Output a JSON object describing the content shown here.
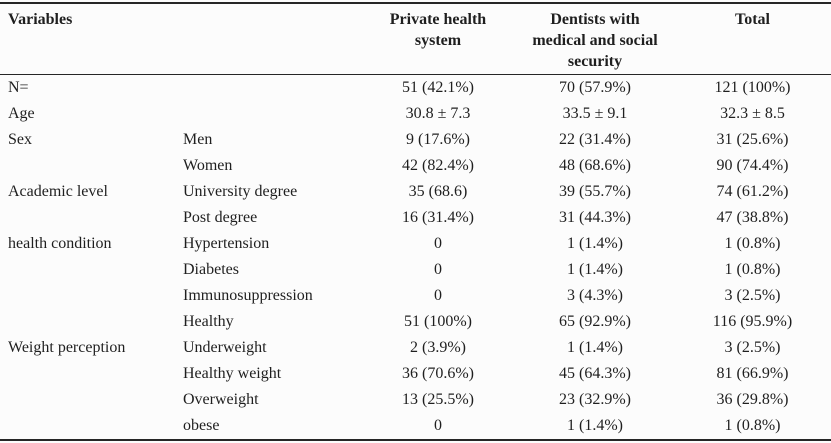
{
  "table": {
    "headers": {
      "variables": "Variables",
      "private_health_system": "Private health\nsystem",
      "dentists_security": "Dentists with\nmedical and social\nsecurity",
      "total": "Total"
    },
    "rows": [
      {
        "cells": [
          "N=",
          "",
          "51 (42.1%)",
          "70 (57.9%)",
          "121 (100%)"
        ]
      },
      {
        "cells": [
          "Age",
          "",
          "30.8 ± 7.3",
          "33.5 ± 9.1",
          "32.3 ± 8.5"
        ]
      },
      {
        "cells": [
          "Sex",
          "Men",
          "9 (17.6%)",
          "22 (31.4%)",
          "31 (25.6%)"
        ]
      },
      {
        "cells": [
          "",
          "Women",
          "42 (82.4%)",
          "48 (68.6%)",
          "90 (74.4%)"
        ]
      },
      {
        "cells": [
          "Academic level",
          "University degree",
          "35 (68.6)",
          "39 (55.7%)",
          "74 (61.2%)"
        ]
      },
      {
        "cells": [
          "",
          "Post degree",
          "16 (31.4%)",
          "31 (44.3%)",
          "47 (38.8%)"
        ]
      },
      {
        "cells": [
          "health condition",
          "Hypertension",
          "0",
          "1 (1.4%)",
          "1 (0.8%)"
        ]
      },
      {
        "cells": [
          "",
          "Diabetes",
          "0",
          "1 (1.4%)",
          "1 (0.8%)"
        ]
      },
      {
        "cells": [
          "",
          "Immunosuppression",
          "0",
          "3 (4.3%)",
          "3 (2.5%)"
        ]
      },
      {
        "cells": [
          "",
          "Healthy",
          "51 (100%)",
          "65 (92.9%)",
          "116 (95.9%)"
        ]
      },
      {
        "cells": [
          "Weight perception",
          "Underweight",
          "2 (3.9%)",
          "1 (1.4%)",
          "3 (2.5%)"
        ]
      },
      {
        "cells": [
          "",
          "Healthy weight",
          "36 (70.6%)",
          "45 (64.3%)",
          "81 (66.9%)"
        ]
      },
      {
        "cells": [
          "",
          "Overweight",
          "13 (25.5%)",
          "23 (32.9%)",
          "36 (29.8%)"
        ]
      },
      {
        "cells": [
          "",
          "obese",
          "0",
          "1 (1.4%)",
          "1 (0.8%)"
        ]
      }
    ],
    "colors": {
      "background": "#fcfcfc",
      "text": "#1f1f1f",
      "rule": "#262626"
    }
  }
}
